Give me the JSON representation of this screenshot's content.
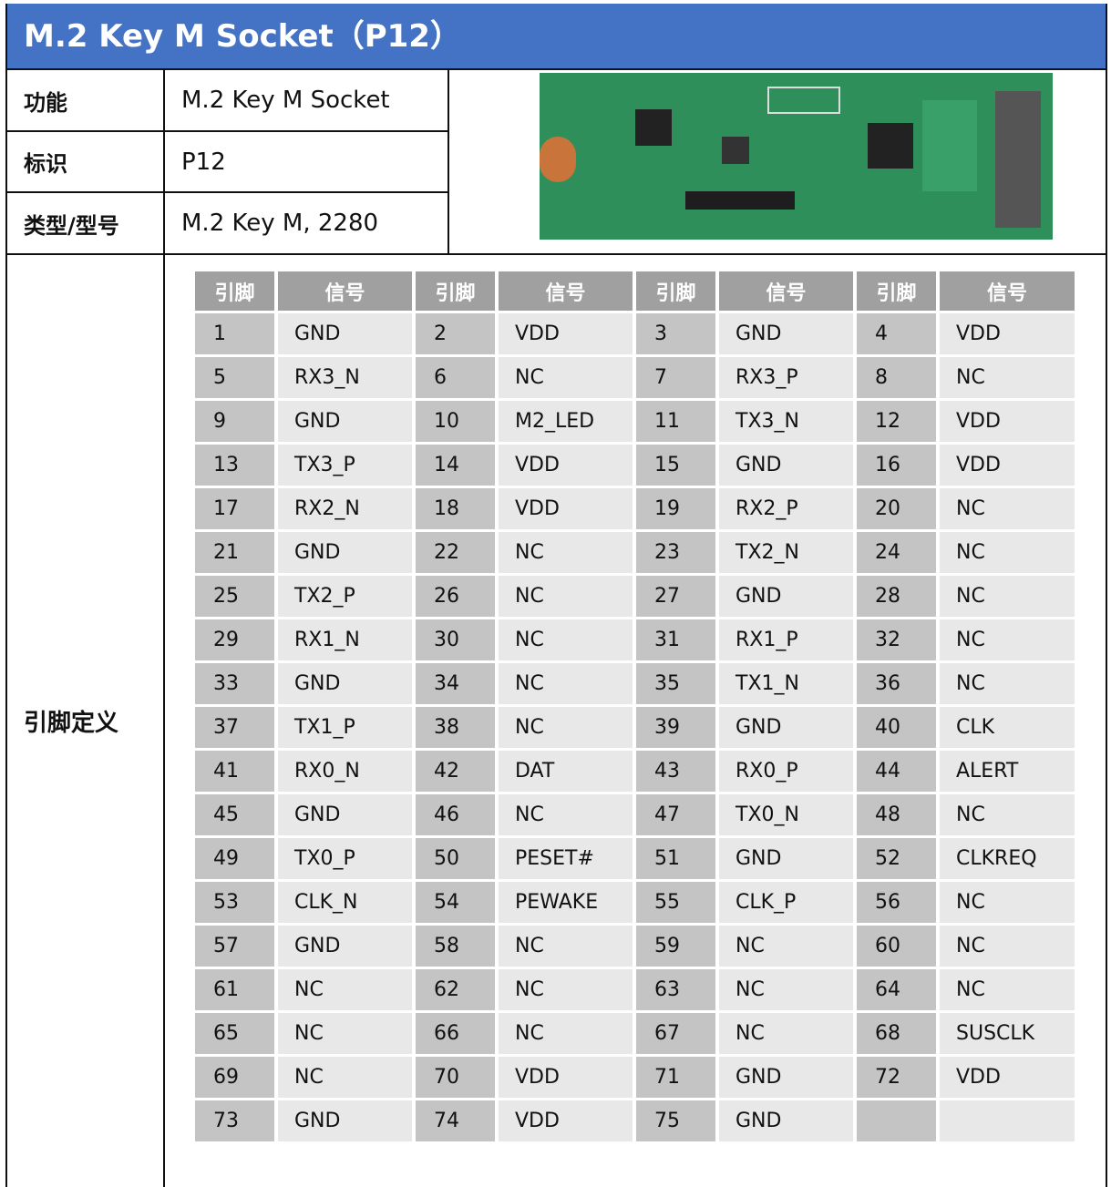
{
  "header": {
    "title": "M.2 Key M Socket（P12）"
  },
  "info": [
    {
      "label": "功能",
      "value": "M.2 Key M Socket"
    },
    {
      "label": "标识",
      "value": "P12"
    },
    {
      "label": "类型/型号",
      "value": "M.2 Key M, 2280"
    }
  ],
  "pinout": {
    "label": "引脚定义",
    "columns": [
      "引脚",
      "信号",
      "引脚",
      "信号",
      "引脚",
      "信号",
      "引脚",
      "信号"
    ],
    "rows": [
      [
        1,
        "GND",
        2,
        "VDD",
        3,
        "GND",
        4,
        "VDD"
      ],
      [
        5,
        "RX3_N",
        6,
        "NC",
        7,
        "RX3_P",
        8,
        "NC"
      ],
      [
        9,
        "GND",
        10,
        "M2_LED",
        11,
        "TX3_N",
        12,
        "VDD"
      ],
      [
        13,
        "TX3_P",
        14,
        "VDD",
        15,
        "GND",
        16,
        "VDD"
      ],
      [
        17,
        "RX2_N",
        18,
        "VDD",
        19,
        "RX2_P",
        20,
        "NC"
      ],
      [
        21,
        "GND",
        22,
        "NC",
        23,
        "TX2_N",
        24,
        "NC"
      ],
      [
        25,
        "TX2_P",
        26,
        "NC",
        27,
        "GND",
        28,
        "NC"
      ],
      [
        29,
        "RX1_N",
        30,
        "NC",
        31,
        "RX1_P",
        32,
        "NC"
      ],
      [
        33,
        "GND",
        34,
        "NC",
        35,
        "TX1_N",
        36,
        "NC"
      ],
      [
        37,
        "TX1_P",
        38,
        "NC",
        39,
        "GND",
        40,
        "CLK"
      ],
      [
        41,
        "RX0_N",
        42,
        "DAT",
        43,
        "RX0_P",
        44,
        "ALERT"
      ],
      [
        45,
        "GND",
        46,
        "NC",
        47,
        "TX0_N",
        48,
        "NC"
      ],
      [
        49,
        "TX0_P",
        50,
        "PESET#",
        51,
        "GND",
        52,
        "CLKREQ"
      ],
      [
        53,
        "CLK_N",
        54,
        "PEWAKE",
        55,
        "CLK_P",
        56,
        "NC"
      ],
      [
        57,
        "GND",
        58,
        "NC",
        59,
        "NC",
        60,
        "NC"
      ],
      [
        61,
        "NC",
        62,
        "NC",
        63,
        "NC",
        64,
        "NC"
      ],
      [
        65,
        "NC",
        66,
        "NC",
        67,
        "NC",
        68,
        "SUSCLK"
      ],
      [
        69,
        "NC",
        70,
        "VDD",
        71,
        "GND",
        72,
        "VDD"
      ],
      [
        73,
        "GND",
        74,
        "VDD",
        75,
        "GND"
      ]
    ]
  }
}
